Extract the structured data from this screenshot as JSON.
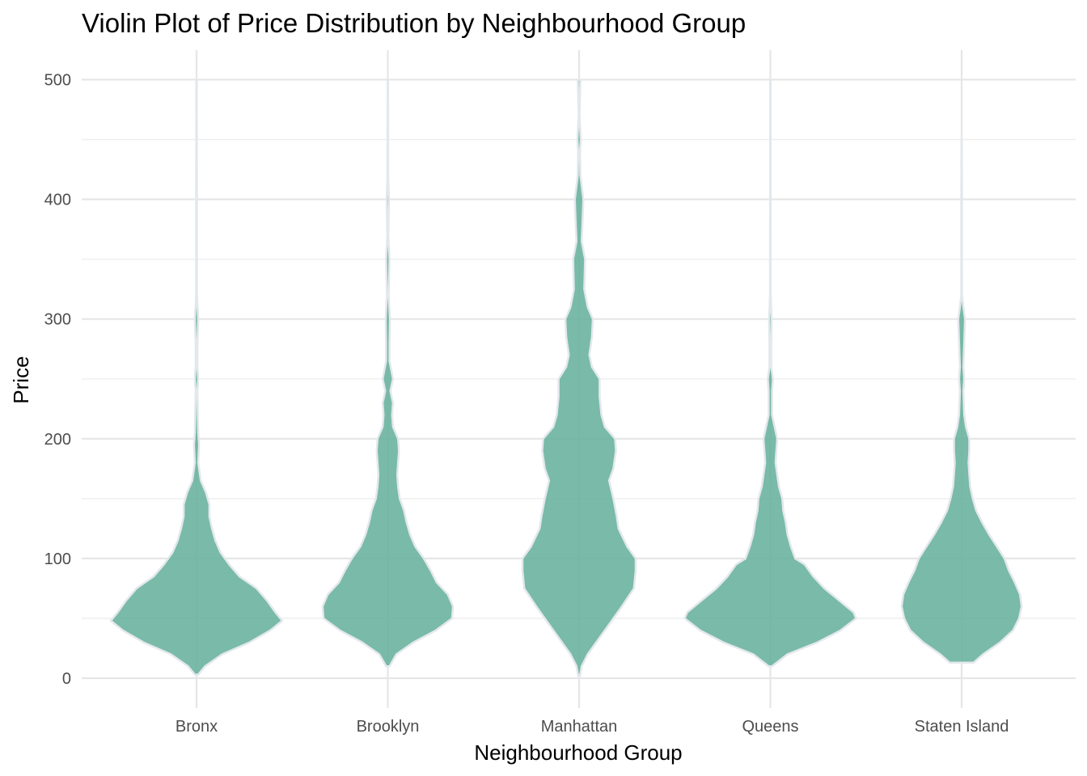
{
  "chart_data": {
    "type": "violin",
    "title": "Violin Plot of Price Distribution by Neighbourhood Group",
    "xlabel": "Neighbourhood Group",
    "ylabel": "Price",
    "ylim": [
      -25,
      525
    ],
    "yticks": [
      0,
      100,
      200,
      300,
      400,
      500
    ],
    "grid": true,
    "colors": {
      "fill": "#66b19c",
      "outline": "#e3e8ec"
    },
    "categories": [
      "Bronx",
      "Brooklyn",
      "Manhattan",
      "Queens",
      "Staten Island"
    ],
    "violins": [
      {
        "category": "Bronx",
        "min": 3,
        "max": 500,
        "density": [
          [
            3,
            0.02
          ],
          [
            10,
            0.1
          ],
          [
            20,
            0.3
          ],
          [
            30,
            0.62
          ],
          [
            40,
            0.86
          ],
          [
            48,
            1.0
          ],
          [
            55,
            0.92
          ],
          [
            65,
            0.82
          ],
          [
            75,
            0.7
          ],
          [
            85,
            0.5
          ],
          [
            95,
            0.38
          ],
          [
            105,
            0.28
          ],
          [
            115,
            0.22
          ],
          [
            125,
            0.18
          ],
          [
            135,
            0.15
          ],
          [
            145,
            0.15
          ],
          [
            155,
            0.11
          ],
          [
            165,
            0.05
          ],
          [
            180,
            0.02
          ],
          [
            195,
            0.03
          ],
          [
            205,
            0.02
          ],
          [
            220,
            0.015
          ],
          [
            240,
            0.01
          ],
          [
            250,
            0.02
          ],
          [
            260,
            0.01
          ],
          [
            280,
            0.01
          ],
          [
            300,
            0.02
          ],
          [
            320,
            0.005
          ],
          [
            350,
            0.005
          ],
          [
            400,
            0.005
          ],
          [
            450,
            0.004
          ],
          [
            500,
            0.003
          ]
        ]
      },
      {
        "category": "Brooklyn",
        "min": 10,
        "max": 500,
        "density": [
          [
            10,
            0.02
          ],
          [
            20,
            0.1
          ],
          [
            30,
            0.3
          ],
          [
            40,
            0.56
          ],
          [
            50,
            0.75
          ],
          [
            60,
            0.76
          ],
          [
            70,
            0.7
          ],
          [
            80,
            0.57
          ],
          [
            90,
            0.5
          ],
          [
            100,
            0.42
          ],
          [
            110,
            0.32
          ],
          [
            120,
            0.26
          ],
          [
            130,
            0.22
          ],
          [
            140,
            0.19
          ],
          [
            150,
            0.14
          ],
          [
            160,
            0.12
          ],
          [
            170,
            0.11
          ],
          [
            180,
            0.12
          ],
          [
            190,
            0.13
          ],
          [
            200,
            0.12
          ],
          [
            210,
            0.06
          ],
          [
            220,
            0.05
          ],
          [
            230,
            0.06
          ],
          [
            240,
            0.03
          ],
          [
            250,
            0.06
          ],
          [
            265,
            0.02
          ],
          [
            280,
            0.02
          ],
          [
            300,
            0.025
          ],
          [
            320,
            0.01
          ],
          [
            350,
            0.02
          ],
          [
            370,
            0.006
          ],
          [
            400,
            0.014
          ],
          [
            420,
            0.004
          ],
          [
            450,
            0.004
          ],
          [
            500,
            0.003
          ]
        ]
      },
      {
        "category": "Manhattan",
        "min": 2,
        "max": 500,
        "density": [
          [
            2,
            0.01
          ],
          [
            10,
            0.03
          ],
          [
            20,
            0.1
          ],
          [
            30,
            0.2
          ],
          [
            40,
            0.3
          ],
          [
            50,
            0.4
          ],
          [
            60,
            0.5
          ],
          [
            75,
            0.64
          ],
          [
            90,
            0.66
          ],
          [
            100,
            0.66
          ],
          [
            110,
            0.56
          ],
          [
            125,
            0.46
          ],
          [
            135,
            0.44
          ],
          [
            150,
            0.4
          ],
          [
            165,
            0.35
          ],
          [
            175,
            0.4
          ],
          [
            190,
            0.43
          ],
          [
            200,
            0.42
          ],
          [
            210,
            0.3
          ],
          [
            220,
            0.26
          ],
          [
            235,
            0.24
          ],
          [
            250,
            0.24
          ],
          [
            260,
            0.15
          ],
          [
            270,
            0.12
          ],
          [
            285,
            0.15
          ],
          [
            300,
            0.16
          ],
          [
            310,
            0.1
          ],
          [
            325,
            0.06
          ],
          [
            350,
            0.07
          ],
          [
            365,
            0.03
          ],
          [
            380,
            0.04
          ],
          [
            400,
            0.05
          ],
          [
            420,
            0.015
          ],
          [
            440,
            0.01
          ],
          [
            450,
            0.02
          ],
          [
            470,
            0.005
          ],
          [
            500,
            0.015
          ]
        ]
      },
      {
        "category": "Queens",
        "min": 10,
        "max": 500,
        "density": [
          [
            10,
            0.02
          ],
          [
            20,
            0.2
          ],
          [
            30,
            0.55
          ],
          [
            40,
            0.82
          ],
          [
            50,
            1.0
          ],
          [
            55,
            0.97
          ],
          [
            65,
            0.8
          ],
          [
            75,
            0.63
          ],
          [
            85,
            0.5
          ],
          [
            95,
            0.4
          ],
          [
            100,
            0.29
          ],
          [
            110,
            0.24
          ],
          [
            120,
            0.2
          ],
          [
            130,
            0.18
          ],
          [
            140,
            0.15
          ],
          [
            150,
            0.14
          ],
          [
            160,
            0.1
          ],
          [
            170,
            0.08
          ],
          [
            180,
            0.06
          ],
          [
            190,
            0.07
          ],
          [
            200,
            0.08
          ],
          [
            210,
            0.05
          ],
          [
            220,
            0.02
          ],
          [
            240,
            0.02
          ],
          [
            250,
            0.03
          ],
          [
            260,
            0.01
          ],
          [
            280,
            0.01
          ],
          [
            300,
            0.015
          ],
          [
            320,
            0.004
          ],
          [
            350,
            0.004
          ],
          [
            400,
            0.003
          ],
          [
            450,
            0.003
          ],
          [
            500,
            0.002
          ]
        ]
      },
      {
        "category": "Staten Island",
        "min": 13,
        "max": 450,
        "density": [
          [
            13,
            0.14
          ],
          [
            20,
            0.25
          ],
          [
            30,
            0.45
          ],
          [
            40,
            0.6
          ],
          [
            50,
            0.67
          ],
          [
            60,
            0.7
          ],
          [
            70,
            0.68
          ],
          [
            80,
            0.62
          ],
          [
            90,
            0.55
          ],
          [
            100,
            0.5
          ],
          [
            110,
            0.41
          ],
          [
            120,
            0.32
          ],
          [
            130,
            0.24
          ],
          [
            140,
            0.17
          ],
          [
            150,
            0.13
          ],
          [
            160,
            0.1
          ],
          [
            170,
            0.09
          ],
          [
            180,
            0.08
          ],
          [
            190,
            0.09
          ],
          [
            200,
            0.09
          ],
          [
            210,
            0.05
          ],
          [
            220,
            0.03
          ],
          [
            240,
            0.02
          ],
          [
            250,
            0.03
          ],
          [
            260,
            0.02
          ],
          [
            280,
            0.03
          ],
          [
            300,
            0.04
          ],
          [
            310,
            0.02
          ],
          [
            320,
            0.005
          ],
          [
            350,
            0.004
          ],
          [
            400,
            0.004
          ],
          [
            450,
            0.002
          ]
        ]
      }
    ]
  }
}
